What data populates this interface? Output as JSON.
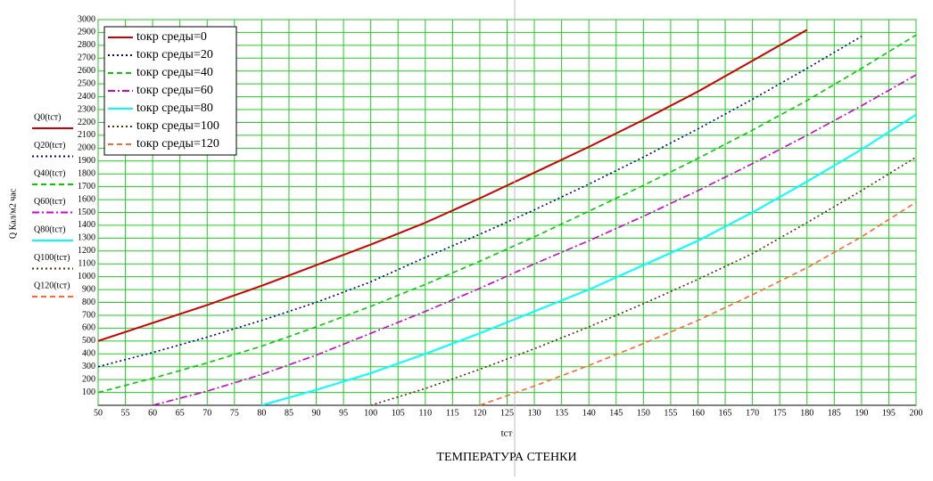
{
  "chart_data": {
    "type": "line",
    "y_title": "Q Кал/м2 час",
    "x_label": "tст",
    "x_title": "ТЕМПЕРАТУРА СТЕНКИ",
    "y_axis_labels": [
      "Q0(tст)",
      "Q20(tст)",
      "Q40(tст)",
      "Q60(tст)",
      "Q80(tст)",
      "Q100(tст)",
      "Q120(tст)"
    ],
    "x": [
      50,
      60,
      70,
      80,
      90,
      100,
      110,
      120,
      130,
      140,
      150,
      160,
      170,
      180,
      190,
      200
    ],
    "series": [
      {
        "name": "tокр среды=0",
        "color": "#cc0000",
        "dash": "solid",
        "values": [
          500,
          640,
          780,
          930,
          1090,
          1250,
          1420,
          1610,
          1810,
          2010,
          2220,
          2440,
          2680,
          2920,
          null,
          null
        ]
      },
      {
        "name": "tокр среды=20",
        "color": "#00008b",
        "dash": "dot",
        "values": [
          300,
          410,
          530,
          660,
          800,
          960,
          1150,
          1330,
          1520,
          1720,
          1930,
          2150,
          2380,
          2620,
          2870,
          null
        ]
      },
      {
        "name": "tокр среды=40",
        "color": "#00cc00",
        "dash": "dash",
        "values": [
          100,
          210,
          330,
          460,
          610,
          770,
          940,
          1120,
          1310,
          1510,
          1710,
          1920,
          2140,
          2370,
          2620,
          2880
        ]
      },
      {
        "name": "tокр среды=60",
        "color": "#cc00cc",
        "dash": "dashdot",
        "values": [
          null,
          0,
          110,
          240,
          390,
          560,
          730,
          910,
          1100,
          1280,
          1470,
          1670,
          1880,
          2100,
          2330,
          2570
        ]
      },
      {
        "name": "tокр среды=80",
        "color": "#00ffff",
        "dash": "solid",
        "values": [
          null,
          null,
          null,
          0,
          120,
          250,
          400,
          560,
          730,
          900,
          1090,
          1280,
          1500,
          1740,
          1990,
          2260
        ]
      },
      {
        "name": "tокр среды=100",
        "color": "#5a2d0c",
        "dash": "dot",
        "values": [
          null,
          null,
          null,
          null,
          null,
          0,
          130,
          280,
          440,
          610,
          790,
          980,
          1180,
          1420,
          1670,
          1930
        ]
      },
      {
        "name": "tокр среды=120",
        "color": "#ff6633",
        "dash": "dash",
        "values": [
          null,
          null,
          null,
          null,
          null,
          null,
          null,
          0,
          150,
          310,
          480,
          660,
          860,
          1070,
          1310,
          1580
        ]
      }
    ],
    "xlim": [
      50,
      200
    ],
    "ylim": [
      0,
      3000
    ],
    "xticks": [
      50,
      55,
      60,
      65,
      70,
      75,
      80,
      85,
      90,
      95,
      100,
      105,
      110,
      115,
      120,
      125,
      130,
      135,
      140,
      145,
      150,
      155,
      160,
      165,
      170,
      175,
      180,
      185,
      190,
      195,
      200
    ],
    "yticks": [
      100,
      200,
      300,
      400,
      500,
      600,
      700,
      800,
      900,
      1000,
      1100,
      1200,
      1300,
      1400,
      1500,
      1600,
      1700,
      1800,
      1900,
      2000,
      2100,
      2200,
      2300,
      2400,
      2500,
      2600,
      2700,
      2800,
      2900,
      3000
    ],
    "grid": true,
    "grid_color": "#22cc22",
    "legend": "upper left"
  }
}
